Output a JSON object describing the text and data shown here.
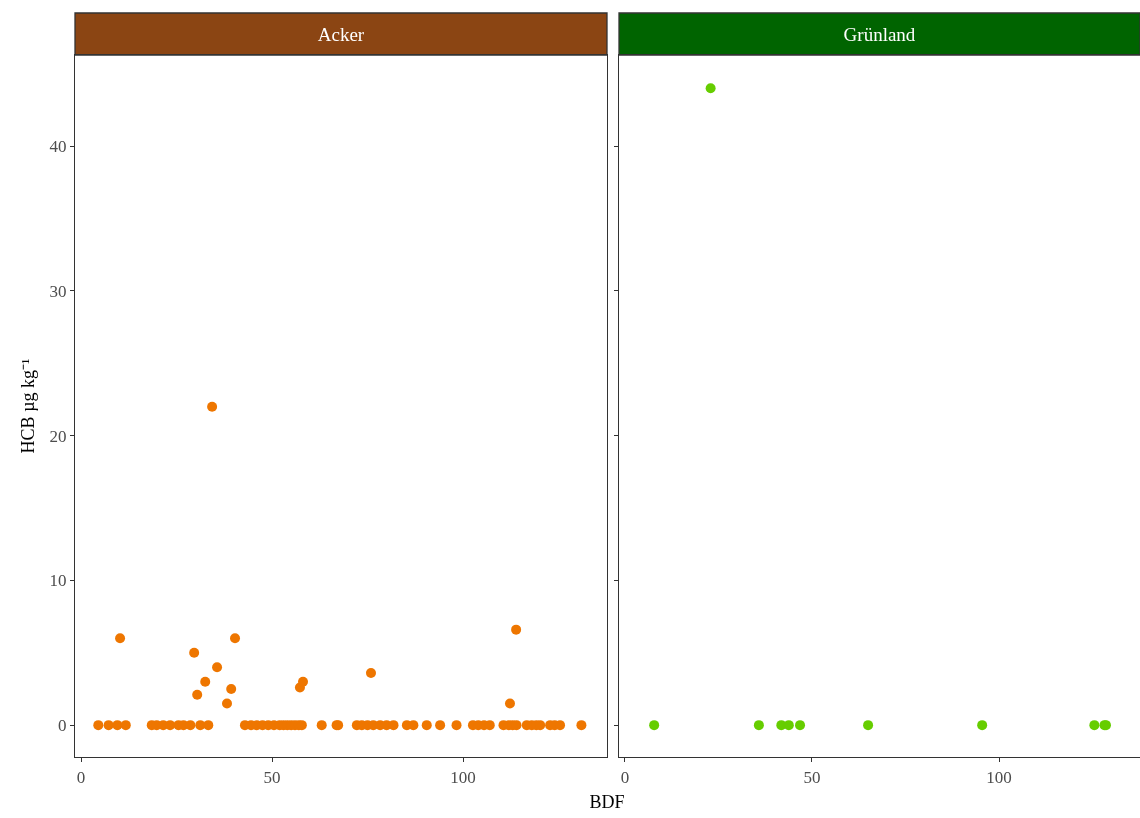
{
  "chart_data": [
    {
      "type": "scatter",
      "title": "Acker",
      "xlabel": "BDF",
      "ylabel": "HCB µg kg⁻¹",
      "marker": "circle",
      "grid": false,
      "xlim": [
        -1.6,
        137.7
      ],
      "xticks": [
        0,
        50,
        100
      ],
      "ylim": [
        -2.2,
        46.3
      ],
      "yticks": [
        0,
        10,
        20,
        30,
        40
      ],
      "series": [
        {
          "color": "#ee7600",
          "x": [
            10.2,
            29.6,
            30.4,
            32.5,
            34.3,
            35.6,
            38.2,
            39.3,
            40.3,
            57.3,
            58.1,
            75.9,
            112.3,
            113.9,
            4.5,
            7.2,
            9.5,
            11.7,
            18.5,
            19.8,
            21.5,
            23.3,
            25.5,
            26.8,
            28.6,
            31.2,
            33.3,
            42.9,
            44.5,
            46,
            47.5,
            49,
            50.5,
            52,
            53,
            54,
            55,
            56,
            57,
            57.8,
            63,
            66.9,
            67.3,
            72.2,
            73.5,
            75,
            76.5,
            78.3,
            80,
            81.8,
            85.3,
            87,
            90.5,
            94,
            98.3,
            102.6,
            104,
            105.5,
            107,
            110.6,
            112,
            113,
            114,
            116.7,
            118,
            119.2,
            120.2,
            122.8,
            124,
            125.4,
            131
          ],
          "values": [
            6.0,
            5.0,
            2.1,
            3.0,
            22.0,
            4.0,
            1.5,
            2.5,
            6.0,
            2.6,
            3.0,
            3.6,
            1.5,
            6.6,
            0,
            0,
            0,
            0,
            0,
            0,
            0,
            0,
            0,
            0,
            0,
            0,
            0,
            0,
            0,
            0,
            0,
            0,
            0,
            0,
            0,
            0,
            0,
            0,
            0,
            0,
            0,
            0,
            0,
            0,
            0,
            0,
            0,
            0,
            0,
            0,
            0,
            0,
            0,
            0,
            0,
            0,
            0,
            0,
            0,
            0,
            0,
            0,
            0,
            0,
            0,
            0,
            0,
            0,
            0,
            0,
            0
          ]
        }
      ]
    },
    {
      "type": "scatter",
      "title": "Grünland",
      "marker": "circle",
      "grid": false,
      "tick_labels": "x",
      "xlim": [
        -1.6,
        137.7
      ],
      "xticks": [
        0,
        50,
        100
      ],
      "ylim": [
        -2.2,
        46.3
      ],
      "yticks": [
        0,
        10,
        20,
        30,
        40
      ],
      "series": [
        {
          "color": "#66cd00",
          "x": [
            22.9,
            7.8,
            35.8,
            41.8,
            43.8,
            46.8,
            65,
            95.5,
            125.5,
            128.2,
            128.6
          ],
          "values": [
            44.0,
            0,
            0,
            0,
            0,
            0,
            0,
            0,
            0,
            0,
            0
          ]
        }
      ]
    }
  ]
}
